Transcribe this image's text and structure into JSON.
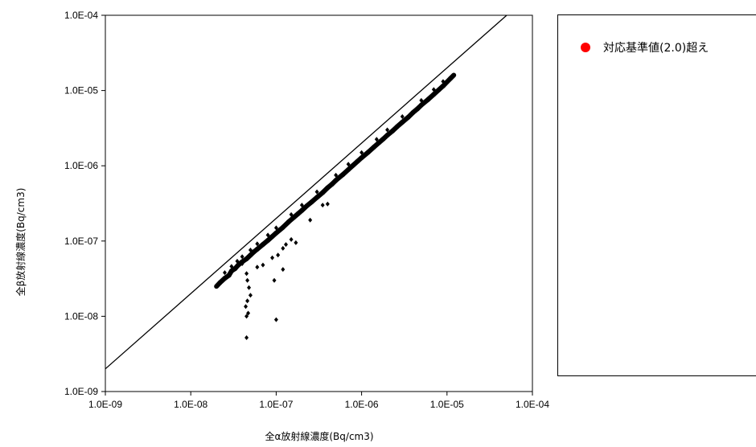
{
  "chart_data": {
    "type": "scatter",
    "title": "",
    "xlabel": "全α放射線濃度(Bq/cm3)",
    "ylabel": "全β放射線濃度(Bq/cm3)",
    "xscale": "log",
    "yscale": "log",
    "xlim": [
      1e-09,
      0.0001
    ],
    "ylim": [
      1e-09,
      0.0001
    ],
    "x_ticks": [
      "1.0E-09",
      "1.0E-08",
      "1.0E-07",
      "1.0E-06",
      "1.0E-05",
      "1.0E-04"
    ],
    "y_ticks": [
      "1.0E-09",
      "1.0E-08",
      "1.0E-07",
      "1.0E-06",
      "1.0E-05",
      "1.0E-04"
    ],
    "grid": false,
    "reference_line": {
      "ratio": 2.0,
      "x": [
        1e-09,
        5e-05
      ],
      "y": [
        2e-09,
        0.0001
      ]
    },
    "series": [
      {
        "name": "",
        "color": "#000000",
        "marker": "diamond",
        "points": [
          [
            2e-08,
            2.5e-08
          ],
          [
            2.2e-08,
            2.8e-08
          ],
          [
            2.5e-08,
            3.2e-08
          ],
          [
            2.8e-08,
            3.5e-08
          ],
          [
            3e-08,
            4e-08
          ],
          [
            3.3e-08,
            4.3e-08
          ],
          [
            3.6e-08,
            4.8e-08
          ],
          [
            4e-08,
            5.3e-08
          ],
          [
            4.5e-08,
            5.8e-08
          ],
          [
            5e-08,
            6.5e-08
          ],
          [
            5.5e-08,
            7.2e-08
          ],
          [
            6e-08,
            7.8e-08
          ],
          [
            7e-08,
            9e-08
          ],
          [
            8e-08,
            1.02e-07
          ],
          [
            9e-08,
            1.15e-07
          ],
          [
            1e-07,
            1.28e-07
          ],
          [
            1.2e-07,
            1.52e-07
          ],
          [
            1.4e-07,
            1.8e-07
          ],
          [
            1.6e-07,
            2.05e-07
          ],
          [
            1.8e-07,
            2.3e-07
          ],
          [
            2e-07,
            2.55e-07
          ],
          [
            2.3e-07,
            2.95e-07
          ],
          [
            2.6e-07,
            3.3e-07
          ],
          [
            3e-07,
            3.8e-07
          ],
          [
            3.5e-07,
            4.4e-07
          ],
          [
            4e-07,
            5.1e-07
          ],
          [
            4.5e-07,
            5.7e-07
          ],
          [
            5e-07,
            6.4e-07
          ],
          [
            6e-07,
            7.6e-07
          ],
          [
            7e-07,
            8.9e-07
          ],
          [
            8e-07,
            1.02e-06
          ],
          [
            9e-07,
            1.15e-06
          ],
          [
            1e-06,
            1.28e-06
          ],
          [
            1.2e-06,
            1.52e-06
          ],
          [
            1.4e-06,
            1.78e-06
          ],
          [
            1.6e-06,
            2.03e-06
          ],
          [
            1.8e-06,
            2.28e-06
          ],
          [
            2e-06,
            2.55e-06
          ],
          [
            2.3e-06,
            2.9e-06
          ],
          [
            2.6e-06,
            3.3e-06
          ],
          [
            3e-06,
            3.8e-06
          ],
          [
            3.5e-06,
            4.4e-06
          ],
          [
            4e-06,
            5.1e-06
          ],
          [
            4.5e-06,
            5.7e-06
          ],
          [
            5e-06,
            6.4e-06
          ],
          [
            6e-06,
            7.6e-06
          ],
          [
            7e-06,
            8.9e-06
          ],
          [
            8e-06,
            1.02e-05
          ],
          [
            9e-06,
            1.15e-05
          ],
          [
            1e-05,
            1.3e-05
          ],
          [
            1.1e-05,
            1.45e-05
          ],
          [
            1.2e-05,
            1.6e-05
          ],
          [
            2.5e-08,
            3.8e-08
          ],
          [
            3e-08,
            4.6e-08
          ],
          [
            3.5e-08,
            5.4e-08
          ],
          [
            4e-08,
            6.2e-08
          ],
          [
            5e-08,
            7.6e-08
          ],
          [
            6e-08,
            9.2e-08
          ],
          [
            8e-08,
            1.2e-07
          ],
          [
            1e-07,
            1.5e-07
          ],
          [
            1.5e-07,
            2.25e-07
          ],
          [
            2e-07,
            3e-07
          ],
          [
            3e-07,
            4.5e-07
          ],
          [
            5e-07,
            7.5e-07
          ],
          [
            7e-07,
            1.05e-06
          ],
          [
            1e-06,
            1.5e-06
          ],
          [
            1.5e-06,
            2.25e-06
          ],
          [
            2e-06,
            3e-06
          ],
          [
            3e-06,
            4.5e-06
          ],
          [
            5e-06,
            7.4e-06
          ],
          [
            7e-06,
            1.03e-05
          ],
          [
            9e-06,
            1.32e-05
          ],
          [
            4e-08,
            5e-08
          ],
          [
            4.5e-08,
            3.7e-08
          ],
          [
            4.6e-08,
            3e-08
          ],
          [
            4.8e-08,
            2.4e-08
          ],
          [
            5e-08,
            1.9e-08
          ],
          [
            4.6e-08,
            1.6e-08
          ],
          [
            4.4e-08,
            1.35e-08
          ],
          [
            4.7e-08,
            1.1e-08
          ],
          [
            4.5e-08,
            1e-08
          ],
          [
            4.5e-08,
            5.2e-09
          ],
          [
            6e-08,
            4.5e-08
          ],
          [
            7e-08,
            4.8e-08
          ],
          [
            9e-08,
            6e-08
          ],
          [
            1.05e-07,
            6.5e-08
          ],
          [
            1.2e-07,
            8e-08
          ],
          [
            1.3e-07,
            9e-08
          ],
          [
            9.5e-08,
            3e-08
          ],
          [
            1e-07,
            9e-09
          ],
          [
            1.2e-07,
            4.2e-08
          ],
          [
            1.5e-07,
            1.05e-07
          ],
          [
            1.7e-07,
            9.5e-08
          ],
          [
            2.5e-07,
            1.9e-07
          ],
          [
            3.5e-07,
            3e-07
          ],
          [
            4e-07,
            3.1e-07
          ]
        ]
      }
    ]
  },
  "legend": {
    "items": [
      {
        "label": "対応基準値(2.0)超え",
        "color": "#ff0000"
      }
    ]
  }
}
